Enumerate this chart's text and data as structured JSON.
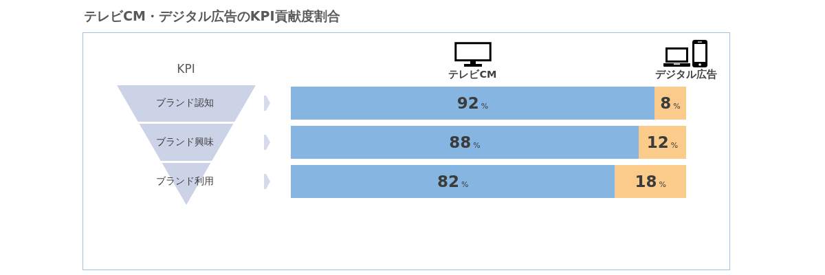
{
  "chart_data": {
    "type": "bar",
    "orientation": "horizontal",
    "stacked": true,
    "title": "テレビCM・デジタル広告のKPI貢献度割合",
    "ylabel": "KPI",
    "categories": [
      "ブランド認知",
      "ブランド興味",
      "ブランド利用"
    ],
    "series": [
      {
        "name": "テレビCM",
        "color": "#86b5e1",
        "values": [
          92,
          88,
          82
        ],
        "value_labels": [
          "92%",
          "88%",
          "82%"
        ]
      },
      {
        "name": "デジタル広告",
        "color": "#fbcb8b",
        "values": [
          8,
          12,
          18
        ],
        "value_labels": [
          "8%",
          "12%",
          "18%"
        ]
      }
    ],
    "xlim": [
      0,
      100
    ],
    "tick_labels": "y"
  }
}
